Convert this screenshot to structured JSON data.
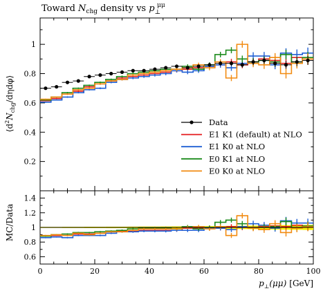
{
  "chart_data": {
    "type": "line",
    "title": "Toward N_chg density vs p_⊥^μμ",
    "title_parts": {
      "pre": "Toward ",
      "n": "N",
      "n_sub": "chg",
      "mid": " density vs ",
      "p": "p",
      "p_sub": "⊥",
      "p_sup": "μμ"
    },
    "xlabel": "p_⊥(μμ) [GeV]",
    "xlabel_parts": {
      "p": "p",
      "sub": "⊥",
      "arg": "(μμ)",
      "unit": "[GeV]"
    },
    "ylabel": "⟨d²N_chg/dηdφ⟩",
    "ylabel_parts": {
      "open": "⟨d",
      "sup2": "2",
      "n": "N",
      "sub": "chg",
      "rest": "/dηdφ⟩"
    },
    "ratio_ylabel": "MC/Data",
    "xlim": [
      0,
      100
    ],
    "ylim": [
      0.0,
      1.18
    ],
    "ratio_ylim": [
      0.5,
      1.5
    ],
    "xticks": [
      0,
      20,
      40,
      60,
      80,
      100
    ],
    "yticks": [
      0.2,
      0.4,
      0.6,
      0.8,
      1.0
    ],
    "ytick_labels": [
      "0.2",
      "0.4",
      "0.6",
      "0.8",
      "1"
    ],
    "ratio_yticks": [
      0.6,
      0.8,
      1.0,
      1.2,
      1.4
    ],
    "ratio_ytick_labels": [
      "0.6",
      "0.8",
      "1",
      "1.2",
      "1.4"
    ],
    "legend_position": "lower-right",
    "bin_edges": [
      0,
      4,
      8,
      12,
      16,
      20,
      24,
      28,
      32,
      36,
      40,
      44,
      48,
      52,
      56,
      60,
      64,
      68,
      72,
      76,
      80,
      84,
      88,
      92,
      96,
      100
    ],
    "data": {
      "name": "Data",
      "color": "#000000",
      "x": [
        2,
        6,
        10,
        14,
        18,
        22,
        26,
        30,
        34,
        38,
        42,
        46,
        50,
        54,
        58,
        62,
        66,
        70,
        74,
        78,
        82,
        86,
        90,
        94,
        98
      ],
      "y": [
        0.7,
        0.71,
        0.74,
        0.75,
        0.78,
        0.79,
        0.8,
        0.81,
        0.82,
        0.82,
        0.83,
        0.84,
        0.85,
        0.84,
        0.85,
        0.86,
        0.87,
        0.87,
        0.86,
        0.88,
        0.89,
        0.87,
        0.86,
        0.88,
        0.89
      ],
      "yerr": [
        0.005,
        0.005,
        0.006,
        0.006,
        0.007,
        0.007,
        0.008,
        0.008,
        0.009,
        0.01,
        0.01,
        0.011,
        0.012,
        0.013,
        0.014,
        0.015,
        0.016,
        0.018,
        0.019,
        0.021,
        0.023,
        0.025,
        0.027,
        0.029,
        0.031
      ]
    },
    "series": [
      {
        "name": "E1 K1 (default) at NLO",
        "color": "#e41a1c",
        "values": [
          0.615,
          0.63,
          0.66,
          0.68,
          0.71,
          0.73,
          0.75,
          0.77,
          0.78,
          0.79,
          0.8,
          0.81,
          0.82,
          0.83,
          0.84,
          0.85,
          0.86,
          0.88,
          0.86,
          0.88,
          0.9,
          0.89,
          0.87,
          0.91,
          0.9
        ],
        "ratio": [
          0.88,
          0.89,
          0.89,
          0.91,
          0.91,
          0.92,
          0.94,
          0.95,
          0.95,
          0.96,
          0.96,
          0.96,
          0.96,
          0.99,
          0.99,
          0.99,
          0.99,
          1.01,
          1.0,
          1.0,
          1.01,
          1.02,
          1.01,
          1.03,
          1.01
        ],
        "yerr": [
          0.004,
          0.004,
          0.005,
          0.005,
          0.005,
          0.006,
          0.006,
          0.007,
          0.008,
          0.009,
          0.01,
          0.011,
          0.012,
          0.014,
          0.015,
          0.017,
          0.019,
          0.021,
          0.023,
          0.026,
          0.028,
          0.03,
          0.033,
          0.035,
          0.038
        ]
      },
      {
        "name": "E1 K0 at NLO",
        "color": "#1f5fd4",
        "values": [
          0.605,
          0.62,
          0.64,
          0.67,
          0.69,
          0.7,
          0.74,
          0.76,
          0.77,
          0.78,
          0.79,
          0.8,
          0.82,
          0.81,
          0.82,
          0.85,
          0.86,
          0.84,
          0.87,
          0.92,
          0.92,
          0.86,
          0.94,
          0.93,
          0.94
        ],
        "ratio": [
          0.86,
          0.87,
          0.86,
          0.89,
          0.89,
          0.89,
          0.92,
          0.94,
          0.94,
          0.95,
          0.95,
          0.95,
          0.96,
          0.96,
          0.96,
          0.99,
          0.99,
          0.97,
          1.01,
          1.05,
          1.03,
          0.99,
          1.09,
          1.06,
          1.06
        ],
        "yerr": [
          0.004,
          0.004,
          0.005,
          0.005,
          0.005,
          0.006,
          0.006,
          0.007,
          0.008,
          0.009,
          0.01,
          0.011,
          0.012,
          0.014,
          0.015,
          0.017,
          0.019,
          0.021,
          0.023,
          0.026,
          0.028,
          0.03,
          0.033,
          0.035,
          0.038
        ]
      },
      {
        "name": "E0 K1 at NLO",
        "color": "#1a8a1a",
        "values": [
          0.62,
          0.64,
          0.67,
          0.7,
          0.72,
          0.74,
          0.76,
          0.78,
          0.8,
          0.81,
          0.82,
          0.83,
          0.83,
          0.85,
          0.83,
          0.86,
          0.93,
          0.96,
          0.9,
          0.88,
          0.89,
          0.88,
          0.93,
          0.88,
          0.91
        ],
        "ratio": [
          0.88,
          0.9,
          0.91,
          0.93,
          0.93,
          0.94,
          0.95,
          0.96,
          0.98,
          0.99,
          0.99,
          0.99,
          0.98,
          1.01,
          0.98,
          1.0,
          1.07,
          1.1,
          1.05,
          1.0,
          1.0,
          1.01,
          1.08,
          1.0,
          1.02
        ],
        "yerr": [
          0.004,
          0.004,
          0.005,
          0.005,
          0.005,
          0.006,
          0.006,
          0.007,
          0.008,
          0.009,
          0.01,
          0.011,
          0.012,
          0.014,
          0.015,
          0.017,
          0.019,
          0.021,
          0.023,
          0.026,
          0.028,
          0.03,
          0.033,
          0.035,
          0.038
        ]
      },
      {
        "name": "E0 K0 at NLO",
        "color": "#f28a10",
        "values": [
          0.625,
          0.64,
          0.66,
          0.69,
          0.7,
          0.73,
          0.75,
          0.76,
          0.79,
          0.8,
          0.81,
          0.82,
          0.83,
          0.84,
          0.86,
          0.84,
          0.88,
          0.77,
          1.0,
          0.87,
          0.86,
          0.91,
          0.8,
          0.87,
          0.9
        ],
        "ratio": [
          0.89,
          0.9,
          0.89,
          0.92,
          0.9,
          0.92,
          0.94,
          0.94,
          0.96,
          0.98,
          0.98,
          0.98,
          0.98,
          1.0,
          1.01,
          0.98,
          1.01,
          0.89,
          1.16,
          0.99,
          0.97,
          1.05,
          0.93,
          0.99,
          1.01
        ],
        "yerr": [
          0.004,
          0.004,
          0.005,
          0.005,
          0.005,
          0.006,
          0.006,
          0.007,
          0.008,
          0.009,
          0.01,
          0.011,
          0.012,
          0.014,
          0.015,
          0.017,
          0.019,
          0.021,
          0.023,
          0.026,
          0.028,
          0.03,
          0.033,
          0.035,
          0.038
        ]
      }
    ]
  }
}
